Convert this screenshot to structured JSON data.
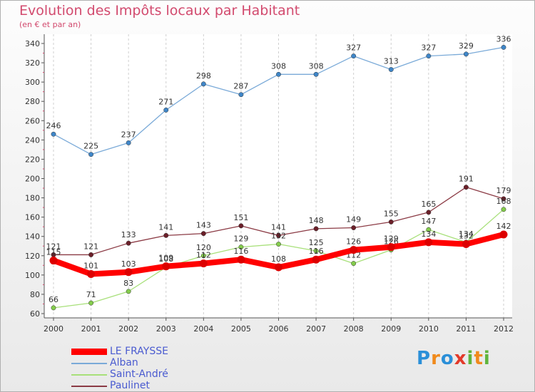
{
  "chart_data": {
    "type": "line",
    "title": "Evolution des Impôts locaux par Habitant",
    "subtitle": "(en € et par an)",
    "xlabel": "",
    "ylabel": "",
    "x": [
      "2000",
      "2001",
      "2002",
      "2003",
      "2004",
      "2005",
      "2006",
      "2007",
      "2008",
      "2009",
      "2010",
      "2011",
      "2012"
    ],
    "ylim": [
      60,
      340
    ],
    "yticks": [
      "60",
      "80",
      "100",
      "120",
      "140",
      "160",
      "180",
      "200",
      "220",
      "240",
      "260",
      "280",
      "300",
      "320",
      "340"
    ],
    "grid": "vertical dashed",
    "series": [
      {
        "name": "Alban",
        "color": "#7aaad8",
        "marker": "#3f86c8",
        "values": [
          246,
          225,
          237,
          271,
          298,
          287,
          308,
          308,
          327,
          313,
          327,
          329,
          336
        ]
      },
      {
        "name": "Paulinet",
        "color": "#8b3a44",
        "marker": "#6b1f29",
        "values": [
          121,
          121,
          133,
          141,
          143,
          151,
          141,
          148,
          149,
          155,
          165,
          191,
          179
        ]
      },
      {
        "name": "Saint-André",
        "color": "#a8e07a",
        "marker": "#84cc4c",
        "values": [
          66,
          71,
          83,
          108,
          120,
          129,
          132,
          125,
          112,
          126,
          147,
          134,
          168
        ]
      },
      {
        "name": "LE FRAYSSE",
        "color": "#ff0000",
        "marker": "#dd0000",
        "values": [
          115,
          101,
          103,
          109,
          112,
          116,
          108,
          116,
          126,
          129,
          134,
          132,
          142
        ]
      }
    ]
  },
  "legend": [
    {
      "name": "LE FRAYSSE",
      "color": "#ff0000",
      "thick": true
    },
    {
      "name": "Alban",
      "color": "#7aaad8",
      "thick": false
    },
    {
      "name": "Saint-André",
      "color": "#a8e07a",
      "thick": false
    },
    {
      "name": "Paulinet",
      "color": "#8b3a44",
      "thick": false
    }
  ],
  "brand": {
    "letters": [
      "P",
      "r",
      "o",
      "x",
      "i",
      "t",
      "i"
    ],
    "colors": [
      "#2a8fd8",
      "#f08a1c",
      "#2a8fd8",
      "#e23a2a",
      "#5fb43c",
      "#f08a1c",
      "#5fb43c"
    ]
  }
}
